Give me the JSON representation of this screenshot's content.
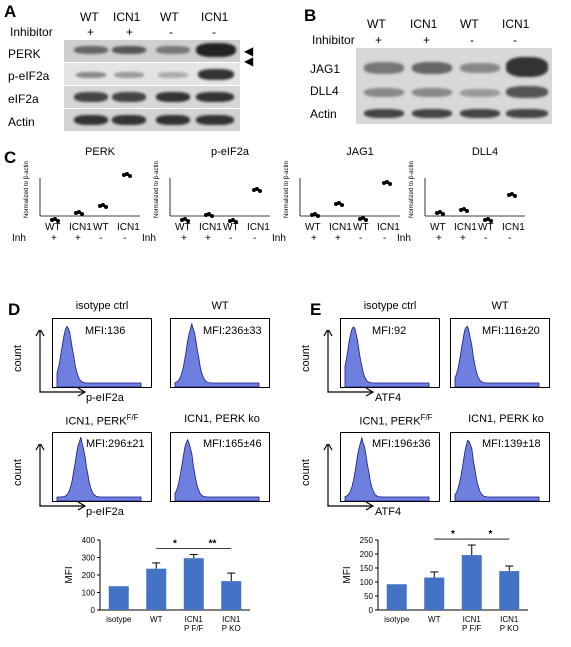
{
  "panels": {
    "A": {
      "letter": "A",
      "lanes": [
        "WT",
        "ICN1",
        "WT",
        "ICN1"
      ],
      "inhibitor_label": "Inhibitor",
      "inhibitor": [
        "+",
        "+",
        "-",
        "-"
      ],
      "rows": [
        "PERK",
        "p-eIF2a",
        "eIF2a",
        "Actin"
      ]
    },
    "B": {
      "letter": "B",
      "lanes": [
        "WT",
        "ICN1",
        "WT",
        "ICN1"
      ],
      "inhibitor_label": "Inhibitor",
      "inhibitor": [
        "+",
        "+",
        "-",
        "-"
      ],
      "rows": [
        "JAG1",
        "DLL4",
        "Actin"
      ]
    },
    "C": {
      "letter": "C",
      "ylabel": "Normalized to β-actin",
      "x_labels": [
        "WT",
        "ICN1",
        "WT",
        "ICN1"
      ],
      "inh_label": "Inh",
      "inh": [
        "+",
        "+",
        "-",
        "-"
      ],
      "plots": [
        {
          "title": "PERK"
        },
        {
          "title": "p-eIF2a"
        },
        {
          "title": "JAG1"
        },
        {
          "title": "DLL4"
        }
      ]
    },
    "D": {
      "letter": "D",
      "hist": [
        {
          "title": "isotype ctrl",
          "mfi": "MFI:136"
        },
        {
          "title": "WT",
          "mfi": "MFI:236±33"
        },
        {
          "title": "ICN1, PERK",
          "title_sup": "F/F",
          "mfi": "MFI:296±21"
        },
        {
          "title": "ICN1, PERK ko",
          "mfi": "MFI:165±46"
        }
      ],
      "xlabel": "p-eIF2a",
      "ylabel": "count",
      "bar_ylabel": "MFI",
      "bar_categories": [
        "isotype",
        "WT",
        "ICN1\nP F/F",
        "ICN1\nP KO"
      ],
      "bar_sig": [
        "*",
        "**"
      ]
    },
    "E": {
      "letter": "E",
      "hist": [
        {
          "title": "isotype ctrl",
          "mfi": "MFI:92"
        },
        {
          "title": "WT",
          "mfi": "MFI:116±20"
        },
        {
          "title": "ICN1, PERK",
          "title_sup": "F/F",
          "mfi": "MFI:196±36"
        },
        {
          "title": "ICN1, PERK ko",
          "mfi": "MFI:139±18"
        }
      ],
      "xlabel": "ATF4",
      "ylabel": "count",
      "bar_ylabel": "MFI",
      "bar_categories": [
        "isotype",
        "WT",
        "ICN1\nP F/F",
        "ICN1\nP KO"
      ],
      "bar_sig": [
        "*",
        "*"
      ]
    }
  },
  "chart_data": [
    {
      "type": "bar",
      "title": "",
      "xlabel": "",
      "ylabel": "MFI",
      "categories": [
        "isotype",
        "WT",
        "ICN1 P F/F",
        "ICN1 P KO"
      ],
      "values": [
        136,
        236,
        296,
        165
      ],
      "errors": [
        0,
        33,
        21,
        46
      ],
      "ylim": [
        0,
        400
      ],
      "yticks": [
        0,
        100,
        200,
        300,
        400
      ],
      "color": "#4472c4",
      "grid": false
    },
    {
      "type": "bar",
      "title": "",
      "xlabel": "",
      "ylabel": "MFI",
      "categories": [
        "isotype",
        "WT",
        "ICN1 P F/F",
        "ICN1 P KO"
      ],
      "values": [
        92,
        116,
        196,
        139
      ],
      "errors": [
        0,
        20,
        36,
        18
      ],
      "ylim": [
        0,
        250
      ],
      "yticks": [
        0,
        50,
        100,
        150,
        200,
        250
      ],
      "color": "#4472c4",
      "grid": false
    }
  ]
}
